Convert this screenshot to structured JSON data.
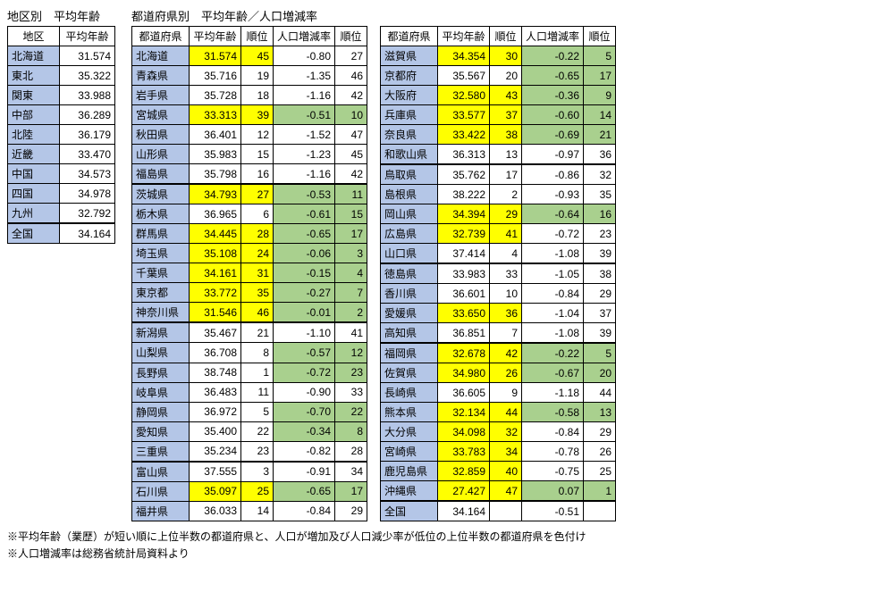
{
  "titles": {
    "region": "地区別　平均年齢",
    "pref": "都道府県別　平均年齢／人口増減率"
  },
  "headers": {
    "region": "地区",
    "avg_age": "平均年齢",
    "prefecture": "都道府県",
    "rank": "順位",
    "pop_rate": "人口増減率"
  },
  "region_rows": [
    {
      "name": "北海道",
      "age": "31.574"
    },
    {
      "name": "東北",
      "age": "35.322"
    },
    {
      "name": "関東",
      "age": "33.988"
    },
    {
      "name": "中部",
      "age": "36.289"
    },
    {
      "name": "北陸",
      "age": "36.179"
    },
    {
      "name": "近畿",
      "age": "33.470"
    },
    {
      "name": "中国",
      "age": "34.573"
    },
    {
      "name": "四国",
      "age": "34.978"
    },
    {
      "name": "九州",
      "age": "32.792"
    },
    {
      "name": "全国",
      "age": "34.164"
    }
  ],
  "pref_rows_left": [
    {
      "name": "北海道",
      "age": "31.574",
      "r1": "45",
      "rate": "-0.80",
      "r2": "27",
      "hl_age": true,
      "hl_rate": false,
      "sep": false
    },
    {
      "name": "青森県",
      "age": "35.716",
      "r1": "19",
      "rate": "-1.35",
      "r2": "46",
      "hl_age": false,
      "hl_rate": false,
      "sep": false
    },
    {
      "name": "岩手県",
      "age": "35.728",
      "r1": "18",
      "rate": "-1.16",
      "r2": "42",
      "hl_age": false,
      "hl_rate": false,
      "sep": false
    },
    {
      "name": "宮城県",
      "age": "33.313",
      "r1": "39",
      "rate": "-0.51",
      "r2": "10",
      "hl_age": true,
      "hl_rate": true,
      "sep": false
    },
    {
      "name": "秋田県",
      "age": "36.401",
      "r1": "12",
      "rate": "-1.52",
      "r2": "47",
      "hl_age": false,
      "hl_rate": false,
      "sep": false
    },
    {
      "name": "山形県",
      "age": "35.983",
      "r1": "15",
      "rate": "-1.23",
      "r2": "45",
      "hl_age": false,
      "hl_rate": false,
      "sep": false
    },
    {
      "name": "福島県",
      "age": "35.798",
      "r1": "16",
      "rate": "-1.16",
      "r2": "42",
      "hl_age": false,
      "hl_rate": false,
      "sep": false
    },
    {
      "name": "茨城県",
      "age": "34.793",
      "r1": "27",
      "rate": "-0.53",
      "r2": "11",
      "hl_age": true,
      "hl_rate": true,
      "sep": true
    },
    {
      "name": "栃木県",
      "age": "36.965",
      "r1": "6",
      "rate": "-0.61",
      "r2": "15",
      "hl_age": false,
      "hl_rate": true,
      "sep": false
    },
    {
      "name": "群馬県",
      "age": "34.445",
      "r1": "28",
      "rate": "-0.65",
      "r2": "17",
      "hl_age": true,
      "hl_rate": true,
      "sep": false
    },
    {
      "name": "埼玉県",
      "age": "35.108",
      "r1": "24",
      "rate": "-0.06",
      "r2": "3",
      "hl_age": true,
      "hl_rate": true,
      "sep": false
    },
    {
      "name": "千葉県",
      "age": "34.161",
      "r1": "31",
      "rate": "-0.15",
      "r2": "4",
      "hl_age": true,
      "hl_rate": true,
      "sep": false
    },
    {
      "name": "東京都",
      "age": "33.772",
      "r1": "35",
      "rate": "-0.27",
      "r2": "7",
      "hl_age": true,
      "hl_rate": true,
      "sep": false
    },
    {
      "name": "神奈川県",
      "age": "31.546",
      "r1": "46",
      "rate": "-0.01",
      "r2": "2",
      "hl_age": true,
      "hl_rate": true,
      "sep": false
    },
    {
      "name": "新潟県",
      "age": "35.467",
      "r1": "21",
      "rate": "-1.10",
      "r2": "41",
      "hl_age": false,
      "hl_rate": false,
      "sep": true
    },
    {
      "name": "山梨県",
      "age": "36.708",
      "r1": "8",
      "rate": "-0.57",
      "r2": "12",
      "hl_age": false,
      "hl_rate": true,
      "sep": false
    },
    {
      "name": "長野県",
      "age": "38.748",
      "r1": "1",
      "rate": "-0.72",
      "r2": "23",
      "hl_age": false,
      "hl_rate": true,
      "sep": false
    },
    {
      "name": "岐阜県",
      "age": "36.483",
      "r1": "11",
      "rate": "-0.90",
      "r2": "33",
      "hl_age": false,
      "hl_rate": false,
      "sep": false
    },
    {
      "name": "静岡県",
      "age": "36.972",
      "r1": "5",
      "rate": "-0.70",
      "r2": "22",
      "hl_age": false,
      "hl_rate": true,
      "sep": false
    },
    {
      "name": "愛知県",
      "age": "35.400",
      "r1": "22",
      "rate": "-0.34",
      "r2": "8",
      "hl_age": false,
      "hl_rate": true,
      "sep": false
    },
    {
      "name": "三重県",
      "age": "35.234",
      "r1": "23",
      "rate": "-0.82",
      "r2": "28",
      "hl_age": false,
      "hl_rate": false,
      "sep": false
    },
    {
      "name": "富山県",
      "age": "37.555",
      "r1": "3",
      "rate": "-0.91",
      "r2": "34",
      "hl_age": false,
      "hl_rate": false,
      "sep": true
    },
    {
      "name": "石川県",
      "age": "35.097",
      "r1": "25",
      "rate": "-0.65",
      "r2": "17",
      "hl_age": true,
      "hl_rate": true,
      "sep": false
    },
    {
      "name": "福井県",
      "age": "36.033",
      "r1": "14",
      "rate": "-0.84",
      "r2": "29",
      "hl_age": false,
      "hl_rate": false,
      "sep": false
    }
  ],
  "pref_rows_right": [
    {
      "name": "滋賀県",
      "age": "34.354",
      "r1": "30",
      "rate": "-0.22",
      "r2": "5",
      "hl_age": true,
      "hl_rate": true,
      "sep": false
    },
    {
      "name": "京都府",
      "age": "35.567",
      "r1": "20",
      "rate": "-0.65",
      "r2": "17",
      "hl_age": false,
      "hl_rate": true,
      "sep": false
    },
    {
      "name": "大阪府",
      "age": "32.580",
      "r1": "43",
      "rate": "-0.36",
      "r2": "9",
      "hl_age": true,
      "hl_rate": true,
      "sep": false
    },
    {
      "name": "兵庫県",
      "age": "33.577",
      "r1": "37",
      "rate": "-0.60",
      "r2": "14",
      "hl_age": true,
      "hl_rate": true,
      "sep": false
    },
    {
      "name": "奈良県",
      "age": "33.422",
      "r1": "38",
      "rate": "-0.69",
      "r2": "21",
      "hl_age": true,
      "hl_rate": true,
      "sep": false
    },
    {
      "name": "和歌山県",
      "age": "36.313",
      "r1": "13",
      "rate": "-0.97",
      "r2": "36",
      "hl_age": false,
      "hl_rate": false,
      "sep": false
    },
    {
      "name": "鳥取県",
      "age": "35.762",
      "r1": "17",
      "rate": "-0.86",
      "r2": "32",
      "hl_age": false,
      "hl_rate": false,
      "sep": true
    },
    {
      "name": "島根県",
      "age": "38.222",
      "r1": "2",
      "rate": "-0.93",
      "r2": "35",
      "hl_age": false,
      "hl_rate": false,
      "sep": false
    },
    {
      "name": "岡山県",
      "age": "34.394",
      "r1": "29",
      "rate": "-0.64",
      "r2": "16",
      "hl_age": true,
      "hl_rate": true,
      "sep": false
    },
    {
      "name": "広島県",
      "age": "32.739",
      "r1": "41",
      "rate": "-0.72",
      "r2": "23",
      "hl_age": true,
      "hl_rate": false,
      "sep": false
    },
    {
      "name": "山口県",
      "age": "37.414",
      "r1": "4",
      "rate": "-1.08",
      "r2": "39",
      "hl_age": false,
      "hl_rate": false,
      "sep": false
    },
    {
      "name": "徳島県",
      "age": "33.983",
      "r1": "33",
      "rate": "-1.05",
      "r2": "38",
      "hl_age": false,
      "hl_rate": false,
      "sep": true
    },
    {
      "name": "香川県",
      "age": "36.601",
      "r1": "10",
      "rate": "-0.84",
      "r2": "29",
      "hl_age": false,
      "hl_rate": false,
      "sep": false
    },
    {
      "name": "愛媛県",
      "age": "33.650",
      "r1": "36",
      "rate": "-1.04",
      "r2": "37",
      "hl_age": true,
      "hl_rate": false,
      "sep": false
    },
    {
      "name": "高知県",
      "age": "36.851",
      "r1": "7",
      "rate": "-1.08",
      "r2": "39",
      "hl_age": false,
      "hl_rate": false,
      "sep": false
    },
    {
      "name": "福岡県",
      "age": "32.678",
      "r1": "42",
      "rate": "-0.22",
      "r2": "5",
      "hl_age": true,
      "hl_rate": true,
      "sep": true
    },
    {
      "name": "佐賀県",
      "age": "34.980",
      "r1": "26",
      "rate": "-0.67",
      "r2": "20",
      "hl_age": true,
      "hl_rate": true,
      "sep": false
    },
    {
      "name": "長崎県",
      "age": "36.605",
      "r1": "9",
      "rate": "-1.18",
      "r2": "44",
      "hl_age": false,
      "hl_rate": false,
      "sep": false
    },
    {
      "name": "熊本県",
      "age": "32.134",
      "r1": "44",
      "rate": "-0.58",
      "r2": "13",
      "hl_age": true,
      "hl_rate": true,
      "sep": false
    },
    {
      "name": "大分県",
      "age": "34.098",
      "r1": "32",
      "rate": "-0.84",
      "r2": "29",
      "hl_age": true,
      "hl_rate": false,
      "sep": false
    },
    {
      "name": "宮崎県",
      "age": "33.783",
      "r1": "34",
      "rate": "-0.78",
      "r2": "26",
      "hl_age": true,
      "hl_rate": false,
      "sep": false
    },
    {
      "name": "鹿児島県",
      "age": "32.859",
      "r1": "40",
      "rate": "-0.75",
      "r2": "25",
      "hl_age": true,
      "hl_rate": false,
      "sep": false
    },
    {
      "name": "沖縄県",
      "age": "27.427",
      "r1": "47",
      "rate": "0.07",
      "r2": "1",
      "hl_age": true,
      "hl_rate": true,
      "sep": false
    },
    {
      "name": "全国",
      "age": "34.164",
      "r1": "",
      "rate": "-0.51",
      "r2": "",
      "hl_age": false,
      "hl_rate": false,
      "sep": true
    }
  ],
  "footnotes": [
    "※平均年齢（業歴）が短い順に上位半数の都道府県と、人口が増加及び人口減少率が低位の上位半数の都道府県を色付け",
    "※人口増減率は総務省統計局資料より"
  ]
}
